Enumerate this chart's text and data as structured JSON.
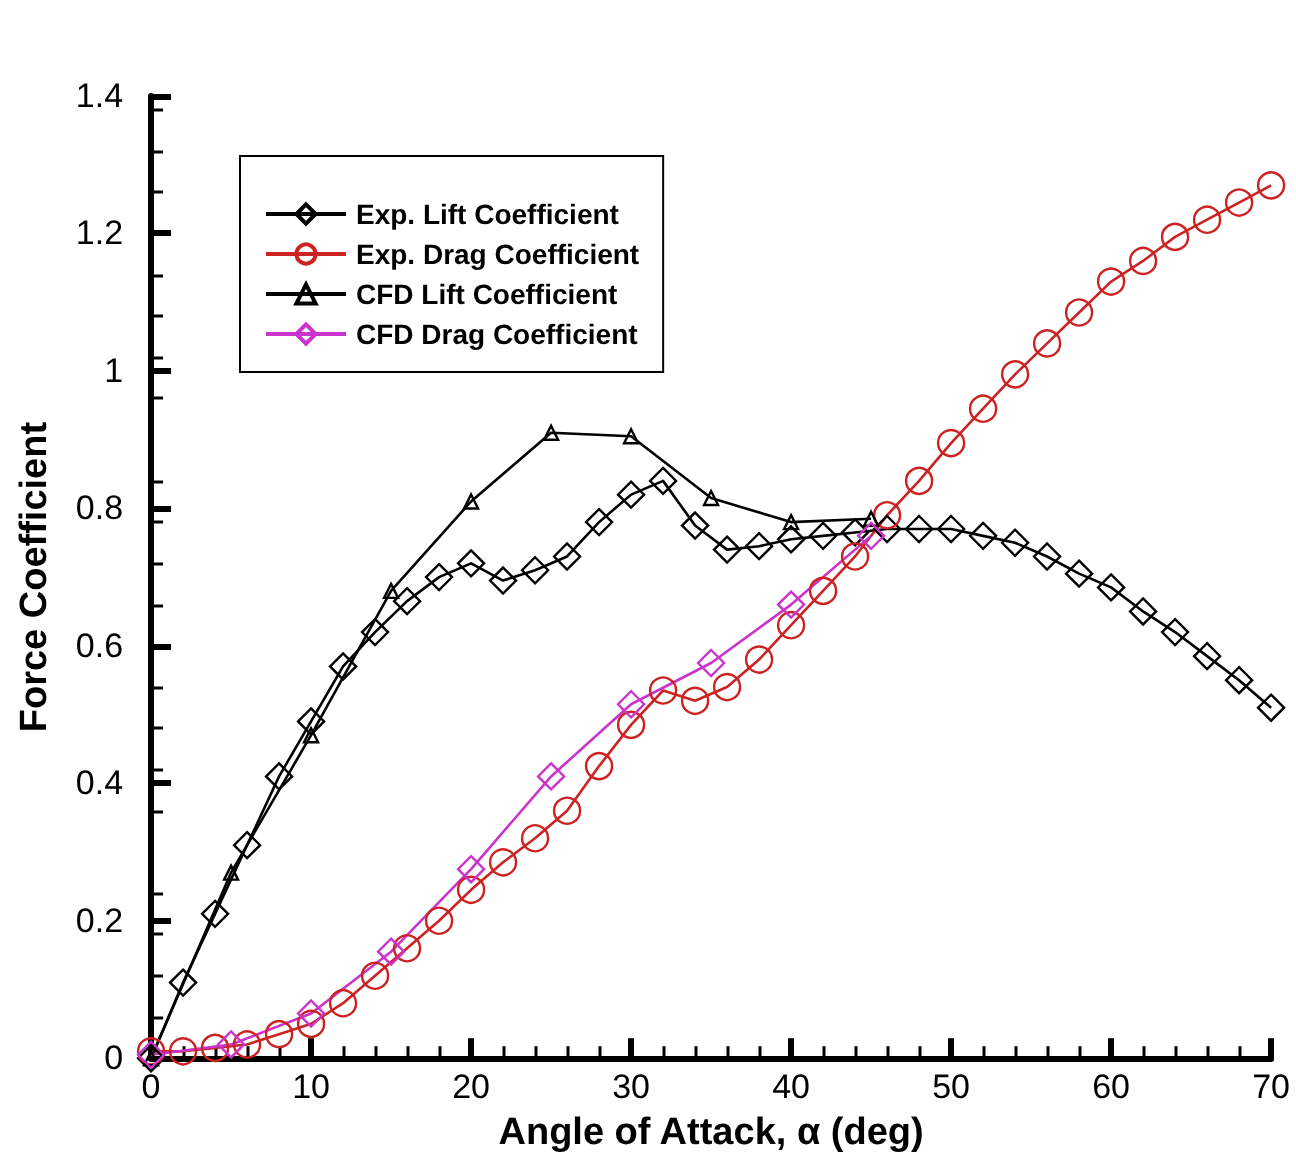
{
  "chart_data": {
    "type": "line",
    "xlabel": "Angle of Attack, α (deg)",
    "ylabel": "Force Coefficient",
    "xlim": [
      0,
      70
    ],
    "xticks": [
      0,
      10,
      20,
      30,
      40,
      50,
      60,
      70
    ],
    "ylim": [
      0,
      1.4
    ],
    "yticks": [
      0,
      0.2,
      0.4,
      0.6,
      0.8,
      1,
      1.2,
      1.4
    ],
    "grid": false,
    "legend": "top left",
    "line_style": "solid",
    "series": [
      {
        "name": "Exp. Lift Coefficient",
        "color": "#000000",
        "marker": "diamond",
        "x": [
          0,
          2,
          4,
          6,
          8,
          10,
          12,
          14,
          16,
          18,
          20,
          22,
          24,
          26,
          28,
          30,
          32,
          34,
          36,
          38,
          40,
          42,
          44,
          46,
          48,
          50,
          52,
          54,
          56,
          58,
          60,
          62,
          64,
          66,
          68,
          70
        ],
        "values": [
          0,
          0.11,
          0.21,
          0.31,
          0.41,
          0.49,
          0.57,
          0.62,
          0.665,
          0.7,
          0.72,
          0.695,
          0.71,
          0.73,
          0.78,
          0.82,
          0.84,
          0.775,
          0.74,
          0.745,
          0.755,
          0.76,
          0.765,
          0.77,
          0.77,
          0.77,
          0.76,
          0.75,
          0.73,
          0.705,
          0.685,
          0.65,
          0.62,
          0.585,
          0.55,
          0.51
        ]
      },
      {
        "name": "Exp. Drag Coefficient",
        "color": "#cc2222",
        "marker": "circle",
        "x": [
          0,
          2,
          4,
          6,
          8,
          10,
          12,
          14,
          16,
          18,
          20,
          22,
          24,
          26,
          28,
          30,
          32,
          34,
          36,
          38,
          40,
          42,
          44,
          46,
          48,
          50,
          52,
          54,
          56,
          58,
          60,
          62,
          64,
          66,
          68,
          70
        ],
        "values": [
          0.01,
          0.01,
          0.015,
          0.02,
          0.035,
          0.05,
          0.08,
          0.12,
          0.16,
          0.2,
          0.245,
          0.285,
          0.32,
          0.36,
          0.425,
          0.485,
          0.535,
          0.52,
          0.54,
          0.58,
          0.63,
          0.68,
          0.73,
          0.79,
          0.84,
          0.895,
          0.945,
          0.995,
          1.04,
          1.085,
          1.13,
          1.16,
          1.195,
          1.22,
          1.245,
          1.27
        ]
      },
      {
        "name": "CFD Lift Coefficient",
        "color": "#000000",
        "marker": "triangle",
        "x": [
          0,
          5,
          10,
          15,
          20,
          25,
          30,
          35,
          40,
          45
        ],
        "values": [
          0,
          0.27,
          0.47,
          0.68,
          0.81,
          0.91,
          0.905,
          0.815,
          0.78,
          0.785
        ]
      },
      {
        "name": "CFD Drag Coefficient",
        "color": "#cc33cc",
        "marker": "diamond",
        "x": [
          0,
          5,
          10,
          15,
          20,
          25,
          30,
          35,
          40,
          45
        ],
        "values": [
          0.005,
          0.02,
          0.065,
          0.155,
          0.275,
          0.41,
          0.515,
          0.575,
          0.66,
          0.76
        ]
      }
    ]
  }
}
